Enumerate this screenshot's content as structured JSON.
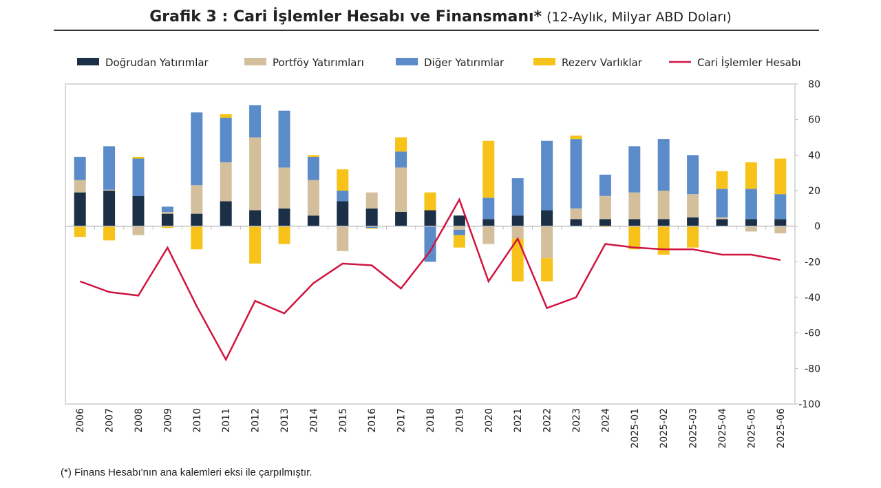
{
  "title": {
    "main": "Grafik 3 : Cari İşlemler Hesabı ve Finansmanı*",
    "sub": "(12-Aylık, Milyar ABD Doları)"
  },
  "footnote": "(*) Finans Hesabı'nın ana kalemleri eksi ile çarpılmıştır.",
  "chart_data": {
    "type": "bar",
    "stacked": true,
    "legend_position": "top",
    "grid": false,
    "ylim": [
      -100,
      80
    ],
    "yticks": [
      80,
      60,
      40,
      20,
      0,
      -20,
      -40,
      -60,
      -80,
      -100
    ],
    "y_axis_side": "right",
    "categories": [
      "2006",
      "2007",
      "2008",
      "2009",
      "2010",
      "2011",
      "2012",
      "2013",
      "2014",
      "2015",
      "2016",
      "2017",
      "2018",
      "2019",
      "2020",
      "2021",
      "2022",
      "2023",
      "2024",
      "2025-01",
      "2025-02",
      "2025-03",
      "2025-04",
      "2025-05",
      "2025-06"
    ],
    "series": [
      {
        "name": "Doğrudan Yatırımlar",
        "type": "bar",
        "color": "#1b2f47",
        "values": [
          19,
          20,
          17,
          7,
          7,
          14,
          9,
          10,
          6,
          14,
          10,
          8,
          9,
          6,
          4,
          6,
          9,
          4,
          4,
          4,
          4,
          5,
          4,
          4,
          4
        ]
      },
      {
        "name": "Portföy Yatırımları",
        "type": "bar",
        "color": "#d4bf9c",
        "values": [
          7,
          0.5,
          -5,
          1,
          16,
          22,
          41,
          23,
          20,
          -14,
          9,
          25,
          0,
          -2,
          -10,
          -7,
          -18,
          6,
          13,
          15,
          16,
          13,
          1,
          -3,
          -4
        ]
      },
      {
        "name": "Diğer Yatırımlar",
        "type": "bar",
        "color": "#5b8bc8",
        "values": [
          13,
          24.5,
          21,
          3,
          41,
          25,
          18,
          32,
          13,
          6,
          -1,
          9,
          -20,
          -3,
          12,
          21,
          39,
          39,
          12,
          26,
          29,
          22,
          16,
          17,
          14
        ]
      },
      {
        "name": "Rezerv Varlıklar",
        "type": "bar",
        "color": "#f7c31a",
        "values": [
          -6,
          -8,
          1,
          -1,
          -13,
          2,
          -21,
          -10,
          1,
          12,
          -0.5,
          8,
          10,
          -7,
          32,
          -24,
          -13,
          2,
          -0.5,
          -13,
          -16,
          -12,
          10,
          15,
          20
        ]
      },
      {
        "name": "Cari İşlemler Hesabı",
        "type": "line",
        "color": "#d0143f",
        "values": [
          -31,
          -37,
          -39,
          -12,
          -45,
          -75,
          -42,
          -49,
          -32,
          -21,
          -22,
          -35,
          -14,
          15,
          -31,
          -7,
          -46,
          -40,
          -10,
          -12,
          -13,
          -13,
          -16,
          -16,
          -19
        ]
      }
    ]
  }
}
